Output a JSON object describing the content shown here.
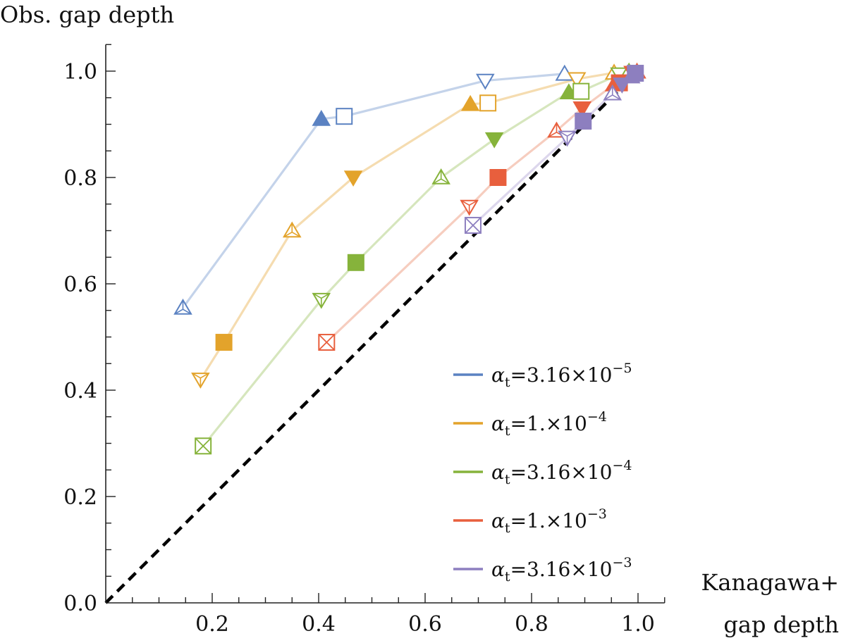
{
  "chart_data": {
    "type": "scatter",
    "title": "",
    "ylabel": "Obs. gap depth",
    "xlabel_line1": "Kanagawa+",
    "xlabel_line2": "gap depth",
    "xlim": [
      0,
      1.05
    ],
    "ylim": [
      0,
      1.05
    ],
    "x_ticks": [
      0.2,
      0.4,
      0.6,
      0.8,
      1.0
    ],
    "x_tick_labels": [
      "0.2",
      "0.4",
      "0.6",
      "0.8",
      "1.0"
    ],
    "y_ticks": [
      0.0,
      0.2,
      0.4,
      0.6,
      0.8,
      1.0
    ],
    "y_tick_labels": [
      "0.0",
      "0.2",
      "0.4",
      "0.6",
      "0.8",
      "1.0"
    ],
    "legend_position": "bottom-right",
    "reference_line": {
      "style": "dashed",
      "color": "#000000",
      "from": [
        0,
        0
      ],
      "to": [
        1,
        1
      ]
    },
    "series": [
      {
        "name": "αt=3.16×10−5",
        "legend_prefix": "α",
        "legend_sub": "t",
        "legend_mid": "=3.16×10",
        "legend_sup": "−5",
        "color": "#5b82c2",
        "line_color": "#c4d3ea",
        "points": [
          {
            "x": 0.145,
            "y": 0.555,
            "marker": "triangle-up-open-inner"
          },
          {
            "x": 0.405,
            "y": 0.91,
            "marker": "triangle-up-filled"
          },
          {
            "x": 0.448,
            "y": 0.915,
            "marker": "square-open"
          },
          {
            "x": 0.713,
            "y": 0.982,
            "marker": "triangle-down-open"
          },
          {
            "x": 0.862,
            "y": 0.995,
            "marker": "triangle-up-open"
          }
        ]
      },
      {
        "name": "αt=1.×10−4",
        "legend_prefix": "α",
        "legend_sub": "t",
        "legend_mid": "=1.×10",
        "legend_sup": "−4",
        "color": "#e3a32b",
        "line_color": "#f5dcb0",
        "points": [
          {
            "x": 0.178,
            "y": 0.42,
            "marker": "triangle-down-open-inner"
          },
          {
            "x": 0.222,
            "y": 0.49,
            "marker": "square-filled"
          },
          {
            "x": 0.35,
            "y": 0.7,
            "marker": "triangle-up-open-inner"
          },
          {
            "x": 0.465,
            "y": 0.8,
            "marker": "triangle-down-filled"
          },
          {
            "x": 0.685,
            "y": 0.938,
            "marker": "triangle-up-filled"
          },
          {
            "x": 0.718,
            "y": 0.94,
            "marker": "square-open"
          },
          {
            "x": 0.885,
            "y": 0.985,
            "marker": "triangle-down-open"
          },
          {
            "x": 0.955,
            "y": 0.997,
            "marker": "triangle-up-open"
          }
        ]
      },
      {
        "name": "αt=3.16×10−4",
        "legend_prefix": "α",
        "legend_sub": "t",
        "legend_mid": "=3.16×10",
        "legend_sup": "−4",
        "color": "#86b33b",
        "line_color": "#d6e6bd",
        "points": [
          {
            "x": 0.183,
            "y": 0.295,
            "marker": "square-open-x"
          },
          {
            "x": 0.405,
            "y": 0.57,
            "marker": "triangle-down-open-inner"
          },
          {
            "x": 0.47,
            "y": 0.64,
            "marker": "square-filled"
          },
          {
            "x": 0.63,
            "y": 0.8,
            "marker": "triangle-up-open-inner"
          },
          {
            "x": 0.73,
            "y": 0.872,
            "marker": "triangle-down-filled"
          },
          {
            "x": 0.87,
            "y": 0.96,
            "marker": "triangle-up-filled"
          },
          {
            "x": 0.893,
            "y": 0.962,
            "marker": "square-open"
          },
          {
            "x": 0.965,
            "y": 0.994,
            "marker": "triangle-down-open"
          },
          {
            "x": 0.983,
            "y": 0.999,
            "marker": "triangle-up-open"
          }
        ]
      },
      {
        "name": "αt=1.×10−3",
        "legend_prefix": "α",
        "legend_sub": "t",
        "legend_mid": "=1.×10",
        "legend_sup": "−3",
        "color": "#e85f3d",
        "line_color": "#f6cdbf",
        "points": [
          {
            "x": 0.415,
            "y": 0.49,
            "marker": "square-open-x"
          },
          {
            "x": 0.683,
            "y": 0.745,
            "marker": "triangle-down-open-inner"
          },
          {
            "x": 0.737,
            "y": 0.8,
            "marker": "square-filled"
          },
          {
            "x": 0.847,
            "y": 0.888,
            "marker": "triangle-up-open-inner"
          },
          {
            "x": 0.895,
            "y": 0.93,
            "marker": "triangle-down-filled"
          },
          {
            "x": 0.955,
            "y": 0.975,
            "marker": "triangle-up-filled"
          },
          {
            "x": 0.965,
            "y": 0.978,
            "marker": "square-filled"
          },
          {
            "x": 0.99,
            "y": 0.997,
            "marker": "triangle-down-filled"
          },
          {
            "x": 0.998,
            "y": 0.999,
            "marker": "triangle-up-filled"
          }
        ]
      },
      {
        "name": "αt=3.16×10−3",
        "legend_prefix": "α",
        "legend_sub": "t",
        "legend_mid": "=3.16×10",
        "legend_sup": "−3",
        "color": "#8d7fbf",
        "line_color": "#dcd6ec",
        "points": [
          {
            "x": 0.69,
            "y": 0.71,
            "marker": "square-open-x"
          },
          {
            "x": 0.867,
            "y": 0.875,
            "marker": "triangle-down-open-inner"
          },
          {
            "x": 0.897,
            "y": 0.906,
            "marker": "square-filled"
          },
          {
            "x": 0.952,
            "y": 0.958,
            "marker": "triangle-up-open-inner"
          },
          {
            "x": 0.97,
            "y": 0.975,
            "marker": "triangle-down-filled"
          },
          {
            "x": 0.987,
            "y": 0.99,
            "marker": "triangle-up-filled"
          },
          {
            "x": 0.995,
            "y": 0.996,
            "marker": "square-filled"
          }
        ]
      }
    ]
  }
}
